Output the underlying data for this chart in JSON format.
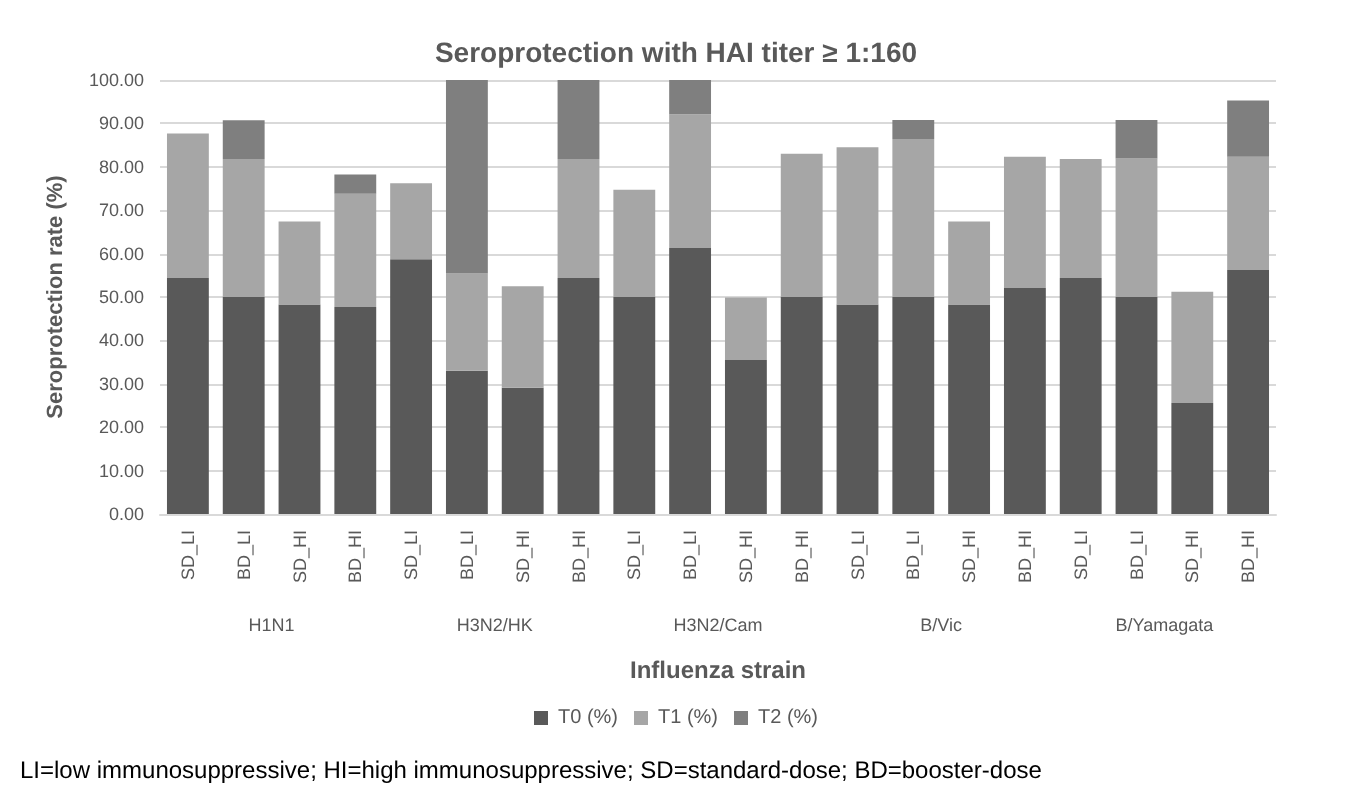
{
  "chart_data": {
    "type": "bar",
    "stacked": true,
    "title": "Seroprotection with HAI titer ≥ 1:160",
    "xlabel": "Influenza strain",
    "ylabel": "Seroprotection rate (%)",
    "categories": [
      "SD_LI",
      "BD_LI",
      "SD_HI",
      "BD_HI",
      "SD_LI",
      "BD_LI",
      "SD_HI",
      "BD_HI",
      "SD_LI",
      "BD_LI",
      "SD_HI",
      "BD_HI",
      "SD_LI",
      "BD_LI",
      "SD_HI",
      "BD_HI",
      "SD_LI",
      "BD_LI",
      "SD_HI",
      "BD_HI"
    ],
    "series": [
      {
        "name": "T0 (%)",
        "color": "#595959",
        "values": [
          54.4,
          50,
          48.3,
          47.7,
          58.7,
          33,
          29.1,
          54.4,
          50,
          61.3,
          35.5,
          50,
          48.3,
          50,
          48.3,
          52.1,
          54.4,
          50,
          25.6,
          56.2
        ]
      },
      {
        "name": "T1 (%)",
        "color": "#a6a6a6",
        "values": [
          33.3,
          31.8,
          19.1,
          26.1,
          17.5,
          22.4,
          23.4,
          27.4,
          24.7,
          30.8,
          14.4,
          33,
          36.2,
          36.4,
          19.1,
          30.2,
          27.4,
          31.9,
          25.6,
          26.1
        ]
      },
      {
        "name": "T2 (%)",
        "color": "#7f7f7f",
        "values": [
          0,
          8.9,
          0,
          4.4,
          0,
          44.6,
          0,
          18.2,
          0,
          7.9,
          0,
          0,
          0,
          4.4,
          0,
          0,
          0,
          8.9,
          0,
          13
        ]
      }
    ],
    "ylim": [
      0,
      100
    ],
    "yticks": [
      {
        "value": 0,
        "label": "0.00"
      },
      {
        "value": 10,
        "label": "10.00"
      },
      {
        "value": 20,
        "label": "20.00"
      },
      {
        "value": 30,
        "label": "30.00"
      },
      {
        "value": 40,
        "label": "40.00"
      },
      {
        "value": 50,
        "label": "50.00"
      },
      {
        "value": 60,
        "label": "60.00"
      },
      {
        "value": 70,
        "label": "70.00"
      },
      {
        "value": 80,
        "label": "80.00"
      },
      {
        "value": 90,
        "label": "90.00"
      },
      {
        "value": 100,
        "label": "100.00"
      }
    ],
    "grid": "y",
    "legend": "bottom",
    "annotations": [
      "H1N1",
      "H3N2/HK",
      "H3N2/Cam",
      "B/Vic",
      "B/Yamagata",
      "LI=low immunosuppressive; HI=high immunosuppressive; SD=standard-dose; BD=booster-dose"
    ]
  }
}
